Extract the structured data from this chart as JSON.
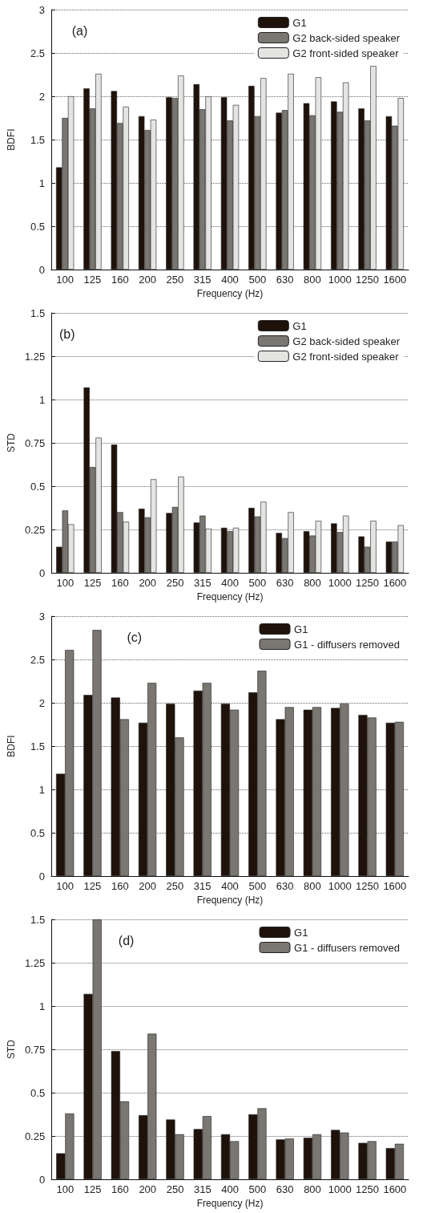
{
  "chart_data": [
    {
      "type": "bar",
      "annotations": [
        "(a)"
      ],
      "xlabel": "Frequency (Hz)",
      "ylabel": "BDFI",
      "categories": [
        "100",
        "125",
        "160",
        "200",
        "250",
        "315",
        "400",
        "500",
        "630",
        "800",
        "1000",
        "1250",
        "1600"
      ],
      "ylim": [
        0,
        3
      ],
      "yticks": [
        0,
        0.5,
        1,
        1.5,
        2,
        2.5,
        3
      ],
      "grid": "y",
      "legend": "top right",
      "series": [
        {
          "name": "G1",
          "color": "#1e120a",
          "values": [
            1.18,
            2.09,
            2.06,
            1.77,
            1.99,
            2.14,
            1.99,
            2.12,
            1.81,
            1.92,
            1.94,
            1.86,
            1.77
          ]
        },
        {
          "name": "G2 back-sided speaker",
          "color": "#7a7671",
          "values": [
            1.75,
            1.86,
            1.69,
            1.61,
            1.98,
            1.85,
            1.72,
            1.77,
            1.84,
            1.78,
            1.82,
            1.72,
            1.66
          ]
        },
        {
          "name": "G2 front-sided speaker",
          "color": "#e4e4e2",
          "values": [
            2.0,
            2.26,
            1.88,
            1.73,
            2.24,
            2.0,
            1.9,
            2.21,
            2.26,
            2.22,
            2.16,
            2.35,
            1.98
          ]
        }
      ]
    },
    {
      "type": "bar",
      "annotations": [
        "(b)"
      ],
      "xlabel": "Frequency (Hz)",
      "ylabel": "STD",
      "categories": [
        "100",
        "125",
        "160",
        "200",
        "250",
        "315",
        "400",
        "500",
        "630",
        "800",
        "1000",
        "1250",
        "1600"
      ],
      "ylim": [
        0,
        1.5
      ],
      "yticks": [
        0,
        0.25,
        0.5,
        0.75,
        1,
        1.25,
        1.5
      ],
      "grid": "y",
      "legend": "top right",
      "series": [
        {
          "name": "G1",
          "color": "#1e120a",
          "values": [
            0.15,
            1.07,
            0.74,
            0.37,
            0.345,
            0.29,
            0.26,
            0.375,
            0.23,
            0.24,
            0.285,
            0.21,
            0.18
          ]
        },
        {
          "name": "G2 back-sided speaker",
          "color": "#7a7671",
          "values": [
            0.36,
            0.61,
            0.35,
            0.32,
            0.38,
            0.33,
            0.24,
            0.325,
            0.2,
            0.215,
            0.235,
            0.15,
            0.18
          ]
        },
        {
          "name": "G2 front-sided speaker",
          "color": "#e4e4e2",
          "values": [
            0.28,
            0.78,
            0.295,
            0.54,
            0.555,
            0.255,
            0.26,
            0.41,
            0.35,
            0.3,
            0.33,
            0.3,
            0.275
          ]
        }
      ]
    },
    {
      "type": "bar",
      "annotations": [
        "(c)"
      ],
      "xlabel": "Frequency (Hz)",
      "ylabel": "BDFI",
      "categories": [
        "100",
        "125",
        "160",
        "200",
        "250",
        "315",
        "400",
        "500",
        "630",
        "800",
        "1000",
        "1250",
        "1600"
      ],
      "ylim": [
        0,
        3
      ],
      "yticks": [
        0,
        0.5,
        1,
        1.5,
        2,
        2.5,
        3
      ],
      "grid": "y",
      "legend": "top right",
      "series": [
        {
          "name": "G1",
          "color": "#1e120a",
          "values": [
            1.18,
            2.09,
            2.06,
            1.77,
            1.99,
            2.14,
            1.99,
            2.12,
            1.81,
            1.92,
            1.94,
            1.86,
            1.77
          ]
        },
        {
          "name": "G1 - diffusers removed",
          "color": "#7a7671",
          "values": [
            2.61,
            2.84,
            1.81,
            2.23,
            1.6,
            2.23,
            1.92,
            2.37,
            1.95,
            1.95,
            1.99,
            1.83,
            1.78
          ]
        }
      ]
    },
    {
      "type": "bar",
      "annotations": [
        "(d)"
      ],
      "xlabel": "Frequency (Hz)",
      "ylabel": "STD",
      "categories": [
        "100",
        "125",
        "160",
        "200",
        "250",
        "315",
        "400",
        "500",
        "630",
        "800",
        "1000",
        "1250",
        "1600"
      ],
      "ylim": [
        0,
        1.5
      ],
      "yticks": [
        0,
        0.25,
        0.5,
        0.75,
        1,
        1.25,
        1.5
      ],
      "grid": "y",
      "legend": "top right",
      "series": [
        {
          "name": "G1",
          "color": "#1e120a",
          "values": [
            0.15,
            1.07,
            0.74,
            0.37,
            0.345,
            0.29,
            0.26,
            0.375,
            0.23,
            0.24,
            0.285,
            0.21,
            0.18
          ]
        },
        {
          "name": "G1 - diffusers removed",
          "color": "#7a7671",
          "values": [
            0.38,
            1.5,
            0.45,
            0.84,
            0.26,
            0.365,
            0.22,
            0.41,
            0.235,
            0.26,
            0.27,
            0.22,
            0.205
          ]
        }
      ]
    }
  ]
}
